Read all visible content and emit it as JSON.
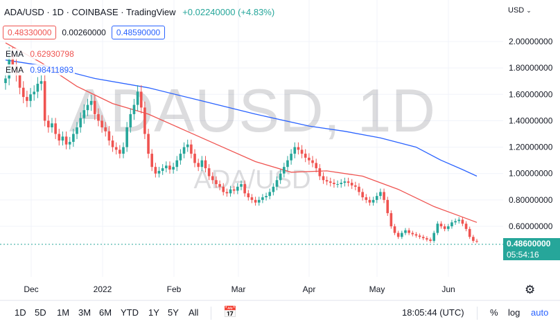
{
  "header": {
    "title": "ADA/USD · 1D · COINBASE · TradingView",
    "change": "+0.02240000 (+4.83%)"
  },
  "ohlc": {
    "open": "0.48330000",
    "mid": "0.00260000",
    "close": "0.48590000"
  },
  "indicators": [
    {
      "name": "EMA",
      "value": "0.62930798",
      "color": "#ef5350"
    },
    {
      "name": "EMA",
      "value": "0.98411893",
      "color": "#2962ff"
    }
  ],
  "currency": "USD",
  "watermark": {
    "main": "ADAUSD, 1D",
    "sub": "ADA/USD"
  },
  "price_tag": {
    "price": "0.48600000",
    "countdown": "05:54:16"
  },
  "bottom_bar": {
    "timeframes": [
      "1D",
      "5D",
      "1M",
      "3M",
      "6M",
      "YTD",
      "1Y",
      "5Y",
      "All"
    ],
    "clock": "18:05:44 (UTC)",
    "percent": "%",
    "log": "log",
    "auto": "auto"
  },
  "chart_data": {
    "type": "candlestick",
    "y_axis": {
      "ticks": [
        "2.00000000",
        "1.80000000",
        "1.60000000",
        "1.40000000",
        "1.20000000",
        "1.00000000",
        "0.80000000",
        "0.60000000"
      ],
      "ylim": [
        0.35,
        2.15
      ]
    },
    "x_axis": {
      "ticks": [
        "Dec",
        "2022",
        "Feb",
        "Mar",
        "Apr",
        "May",
        "Jun"
      ]
    },
    "colors": {
      "up": "#26a69a",
      "down": "#ef5350",
      "ema_fast": "#ef5350",
      "ema_slow": "#2962ff"
    },
    "close_series": [
      1.72,
      1.9,
      1.82,
      1.75,
      1.65,
      1.58,
      1.55,
      1.6,
      1.62,
      1.68,
      1.7,
      1.4,
      1.35,
      1.38,
      1.3,
      1.25,
      1.28,
      1.22,
      1.24,
      1.3,
      1.35,
      1.42,
      1.48,
      1.52,
      1.55,
      1.45,
      1.4,
      1.35,
      1.32,
      1.25,
      1.2,
      1.18,
      1.15,
      1.2,
      1.35,
      1.45,
      1.52,
      1.62,
      1.5,
      1.3,
      1.15,
      1.05,
      1.0,
      1.02,
      1.04,
      1.06,
      1.03,
      1.05,
      1.1,
      1.15,
      1.2,
      1.22,
      1.15,
      1.08,
      1.05,
      1.1,
      1.04,
      0.98,
      0.95,
      0.92,
      0.9,
      0.86,
      0.85,
      0.88,
      0.87,
      0.9,
      0.92,
      0.85,
      0.82,
      0.8,
      0.78,
      0.8,
      0.82,
      0.83,
      0.86,
      0.9,
      0.95,
      1.0,
      1.05,
      1.1,
      1.15,
      1.2,
      1.18,
      1.15,
      1.12,
      1.1,
      1.08,
      1.04,
      0.98,
      0.95,
      0.94,
      0.93,
      0.92,
      0.92,
      0.93,
      0.94,
      0.93,
      0.91,
      0.9,
      0.86,
      0.82,
      0.8,
      0.78,
      0.8,
      0.83,
      0.86,
      0.8,
      0.7,
      0.6,
      0.55,
      0.52,
      0.55,
      0.57,
      0.55,
      0.54,
      0.53,
      0.52,
      0.51,
      0.5,
      0.49,
      0.55,
      0.62,
      0.6,
      0.58,
      0.6,
      0.63,
      0.64,
      0.65,
      0.62,
      0.58,
      0.52,
      0.49,
      0.486
    ],
    "ema_fast_anchors": [
      [
        0,
        1.99
      ],
      [
        10,
        1.84
      ],
      [
        20,
        1.66
      ],
      [
        30,
        1.53
      ],
      [
        40,
        1.45
      ],
      [
        50,
        1.33
      ],
      [
        60,
        1.21
      ],
      [
        70,
        1.09
      ],
      [
        80,
        1.01
      ],
      [
        90,
        1.02
      ],
      [
        100,
        0.98
      ],
      [
        110,
        0.88
      ],
      [
        120,
        0.75
      ],
      [
        126,
        0.69
      ],
      [
        132,
        0.63
      ]
    ],
    "ema_slow_anchors": [
      [
        0,
        1.86
      ],
      [
        12,
        1.81
      ],
      [
        25,
        1.72
      ],
      [
        40,
        1.65
      ],
      [
        55,
        1.55
      ],
      [
        70,
        1.45
      ],
      [
        85,
        1.36
      ],
      [
        95,
        1.32
      ],
      [
        105,
        1.27
      ],
      [
        115,
        1.2
      ],
      [
        122,
        1.1
      ],
      [
        128,
        1.03
      ],
      [
        132,
        0.98
      ]
    ]
  }
}
